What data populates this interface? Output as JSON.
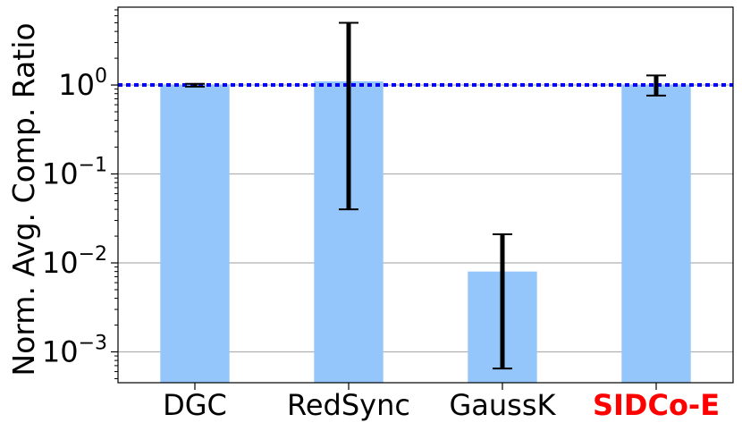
{
  "chart_data": {
    "type": "bar",
    "title": "",
    "xlabel": "",
    "ylabel": "Norm. Avg. Comp. Ratio",
    "yscale": "log",
    "ylim": [
      0.00045,
      7.5
    ],
    "grid": "y-major",
    "categories": [
      "DGC",
      "RedSync",
      "GaussK",
      "SIDCo-E"
    ],
    "highlight_category": "SIDCo-E",
    "values": [
      1.0,
      1.1,
      0.008,
      1.0
    ],
    "error_low": [
      0.96,
      0.04,
      0.00065,
      0.76
    ],
    "error_high": [
      1.03,
      5.0,
      0.021,
      1.28
    ],
    "reference_line": {
      "y": 1.0,
      "style": "dotted",
      "color": "#0000ff"
    },
    "yticks": [
      {
        "base": "10",
        "exp": "0",
        "value": 1
      },
      {
        "base": "10",
        "exp": "−1",
        "value": 0.1
      },
      {
        "base": "10",
        "exp": "−2",
        "value": 0.01
      },
      {
        "base": "10",
        "exp": "−3",
        "value": 0.001
      }
    ],
    "colors": {
      "bar": "#94c6fc",
      "error_bar": "#000000",
      "highlight_label": "#ff0000",
      "grid": "#b0b0b0",
      "reference": "#0000ff"
    }
  }
}
